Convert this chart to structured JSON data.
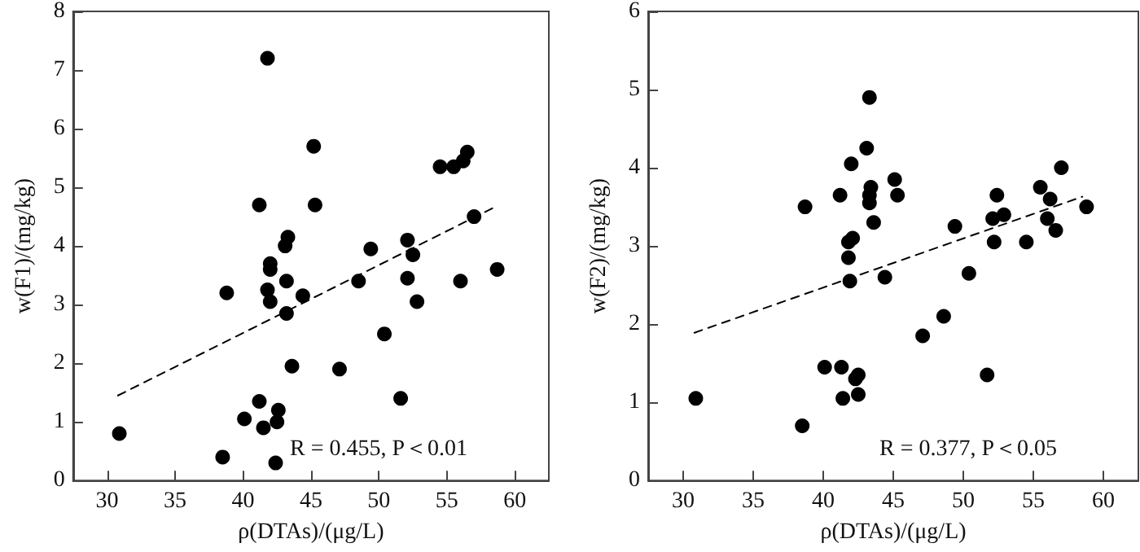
{
  "chart_data": [
    {
      "type": "scatter",
      "xlabel": "ρ(DTAs)/(μg/L)",
      "ylabel": "w(F1)/(mg/kg)",
      "annotations": [
        "R = 0.455, P＜0.01"
      ],
      "xlim": [
        27.5,
        62.5
      ],
      "xticks": [
        30,
        35,
        40,
        45,
        50,
        55,
        60
      ],
      "ylim": [
        0,
        8
      ],
      "yticks": [
        0,
        1,
        2,
        3,
        4,
        5,
        6,
        7,
        8
      ],
      "series": [
        {
          "color": "#000000",
          "marker": "circle",
          "x": [
            41.8,
            45.2,
            41.2,
            45.3,
            43.3,
            43.1,
            49.4,
            52.1,
            52.5,
            54.5,
            55.5,
            56.2,
            56.5,
            57.0,
            42.0,
            42.0,
            38.8,
            41.8,
            42.0,
            43.2,
            44.4,
            43.2,
            48.5,
            52.1,
            52.8,
            56.0,
            58.7,
            50.4,
            43.6,
            47.1,
            51.6,
            41.2,
            42.6,
            40.1,
            42.5,
            41.5,
            30.9,
            38.5,
            42.4
          ],
          "values": [
            7.2,
            5.7,
            4.7,
            4.7,
            4.15,
            4.0,
            3.95,
            4.1,
            3.85,
            5.35,
            5.35,
            5.45,
            5.6,
            4.5,
            3.7,
            3.6,
            3.2,
            3.25,
            3.05,
            3.4,
            3.15,
            2.85,
            3.4,
            3.45,
            3.05,
            3.4,
            3.6,
            2.5,
            1.95,
            1.9,
            1.4,
            1.35,
            1.2,
            1.05,
            1.0,
            0.9,
            0.8,
            0.4,
            0.3
          ]
        },
        {
          "type": "line",
          "color": "#000000",
          "marker": "none",
          "line_style": "dashed",
          "x": [
            30.8,
            58.5
          ],
          "values": [
            1.45,
            4.66
          ]
        }
      ]
    },
    {
      "type": "scatter",
      "xlabel": "ρ(DTAs)/(μg/L)",
      "ylabel": "w(F2)/(mg/kg)",
      "annotations": [
        "R = 0.377, P＜0.05"
      ],
      "xlim": [
        27.5,
        62.5
      ],
      "xticks": [
        30,
        35,
        40,
        45,
        50,
        55,
        60
      ],
      "ylim": [
        0,
        6
      ],
      "yticks": [
        0,
        1,
        2,
        3,
        4,
        5,
        6
      ],
      "series": [
        {
          "color": "#000000",
          "marker": "circle",
          "x": [
            43.3,
            43.1,
            42.0,
            45.1,
            45.3,
            43.4,
            43.3,
            43.3,
            41.2,
            38.7,
            43.6,
            42.1,
            41.8,
            49.4,
            52.4,
            52.1,
            52.9,
            55.5,
            57.0,
            56.2,
            56.0,
            56.6,
            58.8,
            52.2,
            54.5,
            41.8,
            41.9,
            44.4,
            50.4,
            48.6,
            47.1,
            40.1,
            41.3,
            42.5,
            42.3,
            51.7,
            30.9,
            41.4,
            42.5,
            38.5
          ],
          "values": [
            4.9,
            4.25,
            4.05,
            3.85,
            3.65,
            3.75,
            3.65,
            3.55,
            3.65,
            3.5,
            3.3,
            3.1,
            3.05,
            3.25,
            3.65,
            3.35,
            3.4,
            3.75,
            4.0,
            3.6,
            3.35,
            3.2,
            3.5,
            3.05,
            3.05,
            2.85,
            2.55,
            2.6,
            2.65,
            2.1,
            1.85,
            1.45,
            1.45,
            1.35,
            1.3,
            1.35,
            1.05,
            1.05,
            1.1,
            0.7
          ]
        },
        {
          "type": "line",
          "color": "#000000",
          "marker": "none",
          "line_style": "dashed",
          "x": [
            30.8,
            58.5
          ],
          "values": [
            1.89,
            3.63
          ]
        }
      ]
    }
  ]
}
